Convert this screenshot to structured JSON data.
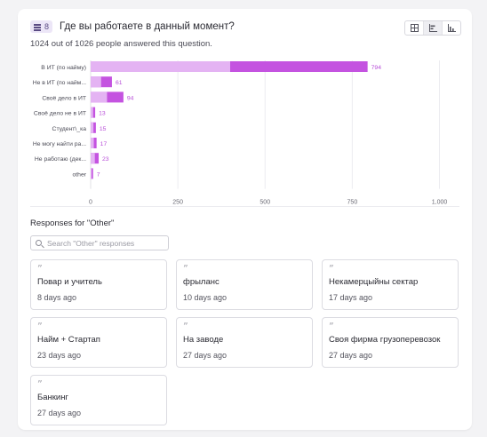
{
  "question": {
    "number": "8",
    "title": "Где вы работаете в данный момент?",
    "answered_text": "1024 out of 1026 people answered this question."
  },
  "view_toggle": [
    "table-view",
    "bar-chart-view",
    "column-chart-view"
  ],
  "colors": {
    "bar_light": "#e4b3f3",
    "bar_dark": "#c453e0",
    "value_label": "#b84fd8"
  },
  "chart_data": {
    "type": "bar",
    "orientation": "horizontal",
    "categories": [
      "В ИТ (по найму)",
      "Не в ИТ (по найм...",
      "Своё дело в ИТ",
      "Своё дело не в ИТ",
      "Студент\\_ка",
      "Не могу найти ра...",
      "Не работаю (дек...",
      "other"
    ],
    "values": [
      794,
      61,
      94,
      13,
      15,
      17,
      23,
      7
    ],
    "value_labels": [
      "794",
      "61",
      "94",
      "13",
      "15",
      "17",
      "23",
      "7"
    ],
    "light_portion": [
      400,
      30,
      47,
      7,
      8,
      9,
      12,
      3
    ],
    "x_ticks": [
      "0",
      "250",
      "500",
      "750",
      "1,000"
    ],
    "xlim": [
      0,
      1000
    ],
    "grid": true
  },
  "other_section": {
    "heading": "Responses for \"Other\"",
    "search_placeholder": "Search \"Other\" responses",
    "responses": [
      {
        "text": "Повар и учитель",
        "time": "8 days ago"
      },
      {
        "text": "фрыланс",
        "time": "10 days ago"
      },
      {
        "text": "Некамерцыйны сектар",
        "time": "17 days ago"
      },
      {
        "text": "Найм + Стартап",
        "time": "23 days ago"
      },
      {
        "text": "На заводе",
        "time": "27 days ago"
      },
      {
        "text": "Своя фирма грузоперевозок",
        "time": "27 days ago"
      },
      {
        "text": "Банкинг",
        "time": "27 days ago"
      }
    ]
  }
}
